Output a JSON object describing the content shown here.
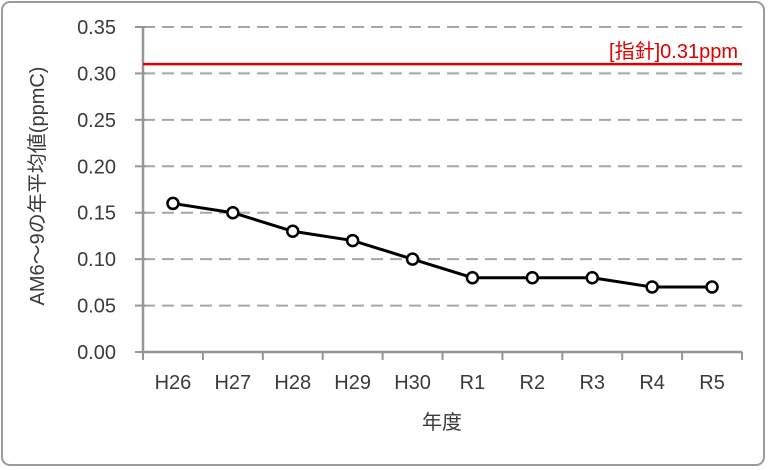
{
  "window": {
    "background": "#ffffff",
    "border_color": "#9b9b9b"
  },
  "chart_data": {
    "type": "line",
    "title": "",
    "categories": [
      "H26",
      "H27",
      "H28",
      "H29",
      "H30",
      "R1",
      "R2",
      "R3",
      "R4",
      "R5"
    ],
    "values": [
      0.16,
      0.15,
      0.13,
      0.12,
      0.1,
      0.08,
      0.08,
      0.08,
      0.07,
      0.07
    ],
    "xlabel": "年度",
    "ylabel": "AM6～9の年平均値(ppmC)",
    "ylim": [
      0,
      0.35
    ],
    "y_ticks": [
      "0.00",
      "0.05",
      "0.10",
      "0.15",
      "0.20",
      "0.25",
      "0.30",
      "0.35"
    ],
    "grid": "horizontal-dashed",
    "legend": "none",
    "marker": "open-circle",
    "ref_line": {
      "value": 0.31,
      "label": "[指針]0.31ppm",
      "color": "#dd0000"
    },
    "colors": {
      "series_line": "#000000",
      "marker_fill": "#ffffff",
      "grid_line": "#a6a6a6",
      "axis_line": "#959595",
      "tick_label": "#3a3a3a"
    }
  }
}
